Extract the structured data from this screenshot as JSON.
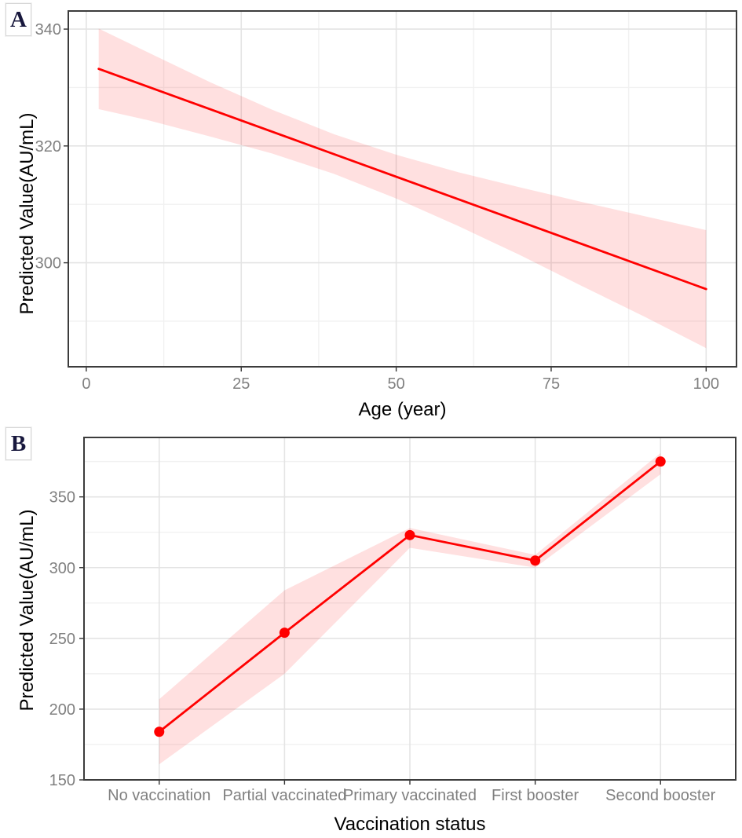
{
  "panels": [
    {
      "label": "A"
    },
    {
      "label": "B"
    }
  ],
  "colors": {
    "line": "#FF0000",
    "ribbon": "rgba(255,0,0,0.12)",
    "grid_major": "#E4E4E4",
    "grid_minor": "#F1F1F1",
    "tick_text": "#808080",
    "axis_title": "#000000",
    "panel_border": "#3C3C3C",
    "tick_mark": "#333333"
  },
  "chart_data": [
    {
      "id": "A",
      "panel_label": "A",
      "type": "line",
      "title": "",
      "xlabel": "Age (year)",
      "ylabel": "Predicted Value(AU/mL)",
      "axis": "continuous",
      "xlim": [
        -2.9,
        104.9
      ],
      "ylim": [
        282.2,
        343.1
      ],
      "xticks": [
        0,
        25,
        50,
        75,
        100
      ],
      "xticks_minor": [
        12.5,
        37.5,
        62.5,
        87.5
      ],
      "yticks": [
        300,
        320,
        340
      ],
      "yticks_minor": [
        290,
        310,
        330
      ],
      "grid": "major+minor",
      "legend": "none",
      "series": [
        {
          "name": "predicted value",
          "x": [
            2,
            100
          ],
          "y": [
            333.2,
            295.5
          ]
        }
      ],
      "ci_ribbon": {
        "x": [
          2,
          10,
          20,
          30,
          40,
          50,
          60,
          70,
          80,
          90,
          100
        ],
        "upper": [
          340.1,
          336.0,
          330.9,
          326.2,
          322.0,
          318.5,
          315.5,
          312.9,
          310.4,
          308.0,
          305.6
        ],
        "lower": [
          326.3,
          324.4,
          321.6,
          318.7,
          315.2,
          311.0,
          306.3,
          301.3,
          296.0,
          290.8,
          285.4
        ]
      },
      "show_points": false
    },
    {
      "id": "B",
      "panel_label": "B",
      "type": "line",
      "title": "",
      "xlabel": "Vaccination status",
      "ylabel": "Predicted Value(AU/mL)",
      "axis": "discrete",
      "categories": [
        "No vaccination",
        "Partial vaccinated",
        "Primary vaccinated",
        "First booster",
        "Second booster"
      ],
      "values": [
        184,
        254,
        323,
        305,
        375
      ],
      "ci_lower": [
        161,
        225,
        314,
        300,
        366
      ],
      "ci_upper": [
        207,
        284,
        328,
        309,
        381
      ],
      "ylim": [
        150,
        392
      ],
      "yticks": [
        150,
        200,
        250,
        300,
        350
      ],
      "yticks_minor": [
        175,
        225,
        275,
        325,
        375
      ],
      "grid": "major+minor-y",
      "legend": "none",
      "show_points": true
    }
  ]
}
